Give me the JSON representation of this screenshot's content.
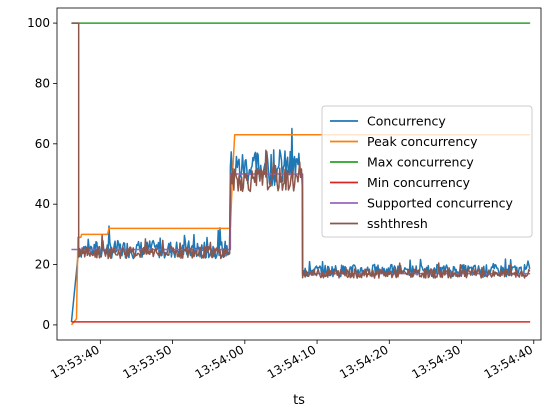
{
  "chart_data": {
    "type": "line",
    "title": "",
    "xlabel": "ts",
    "ylabel": "",
    "x_ticks": [
      "13:53:40",
      "13:53:50",
      "13:54:00",
      "13:54:10",
      "13:54:20",
      "13:54:30",
      "13:54:40"
    ],
    "y_ticks": [
      "0",
      "20",
      "40",
      "60",
      "80",
      "100"
    ],
    "xlim": [
      "13:53:34",
      "13:54:41"
    ],
    "ylim": [
      -5,
      105
    ],
    "grid": false,
    "legend": "center-right",
    "series": [
      {
        "name": "Concurrency",
        "color": "#1f77b4",
        "description_points": [
          [
            "13:53:36",
            1
          ],
          [
            "13:53:37",
            25
          ],
          [
            "13:53:58",
            25
          ],
          [
            "13:53:58",
            52
          ],
          [
            "13:54:08",
            52
          ],
          [
            "13:54:08",
            18
          ],
          [
            "13:54:39.5",
            18
          ]
        ],
        "noise": {
          "segments": [
            [
              "13:53:37",
              "13:53:58",
              25,
              6
            ],
            [
              "13:53:58",
              "13:54:08",
              52,
              12
            ],
            [
              "13:54:08",
              "13:54:39.5",
              18,
              4
            ]
          ]
        }
      },
      {
        "name": "Peak concurrency",
        "color": "#ff7f0e",
        "points": [
          [
            "13:53:36",
            0
          ],
          [
            "13:53:36.7",
            2
          ],
          [
            "13:53:36.9",
            29
          ],
          [
            "13:53:37.3",
            29
          ],
          [
            "13:53:37.4",
            30
          ],
          [
            "13:53:41",
            30
          ],
          [
            "13:53:41.2",
            32
          ],
          [
            "13:53:58",
            32
          ],
          [
            "13:53:58.3",
            50
          ],
          [
            "13:53:58.6",
            63
          ],
          [
            "13:54:39.5",
            63
          ]
        ]
      },
      {
        "name": "Max concurrency",
        "color": "#2ca02c",
        "points": [
          [
            "13:53:36",
            100
          ],
          [
            "13:54:39.5",
            100
          ]
        ]
      },
      {
        "name": "Min concurrency",
        "color": "#d62728",
        "points": [
          [
            "13:53:36",
            1
          ],
          [
            "13:54:39.5",
            1
          ]
        ]
      },
      {
        "name": "Supported concurrency",
        "color": "#9467bd",
        "points": [
          [
            "13:53:36",
            25
          ],
          [
            "13:53:58",
            25
          ],
          [
            "13:53:58",
            50
          ],
          [
            "13:54:08",
            50
          ],
          [
            "13:54:08",
            17
          ],
          [
            "13:54:39.5",
            17
          ]
        ]
      },
      {
        "name": "sshthresh",
        "color": "#8c564b",
        "points": [
          [
            "13:53:36",
            100
          ],
          [
            "13:53:37",
            100
          ],
          [
            "13:53:37",
            24
          ],
          [
            "13:53:58",
            24
          ],
          [
            "13:53:58",
            48
          ],
          [
            "13:54:08",
            48
          ],
          [
            "13:54:08",
            17
          ],
          [
            "13:54:39.5",
            17
          ]
        ],
        "noise": {
          "segments": [
            [
              "13:53:37",
              "13:53:58",
              24,
              4
            ],
            [
              "13:53:58",
              "13:54:08",
              48,
              8
            ],
            [
              "13:54:08",
              "13:54:39.5",
              17,
              3
            ]
          ]
        }
      }
    ]
  }
}
